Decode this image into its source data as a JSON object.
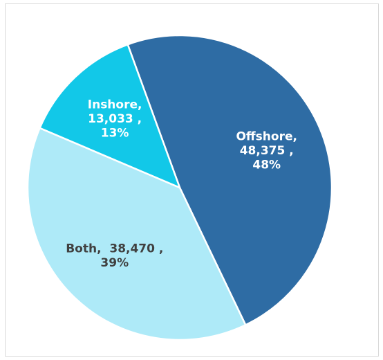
{
  "chart_data": {
    "type": "pie",
    "categories": [
      "Offshore",
      "Both",
      "Inshore"
    ],
    "values": [
      48375,
      38470,
      13033
    ],
    "value_labels": [
      "48,375",
      "38,470",
      "13,033"
    ],
    "percent_labels": [
      "48%",
      "39%",
      "13%"
    ],
    "percents": [
      48,
      39,
      13
    ],
    "separator": ",",
    "colors": [
      "#2e6ca4",
      "#aeeaf8",
      "#12c8e8"
    ],
    "label_colors": [
      "#ffffff",
      "#404040",
      "#ffffff"
    ]
  }
}
